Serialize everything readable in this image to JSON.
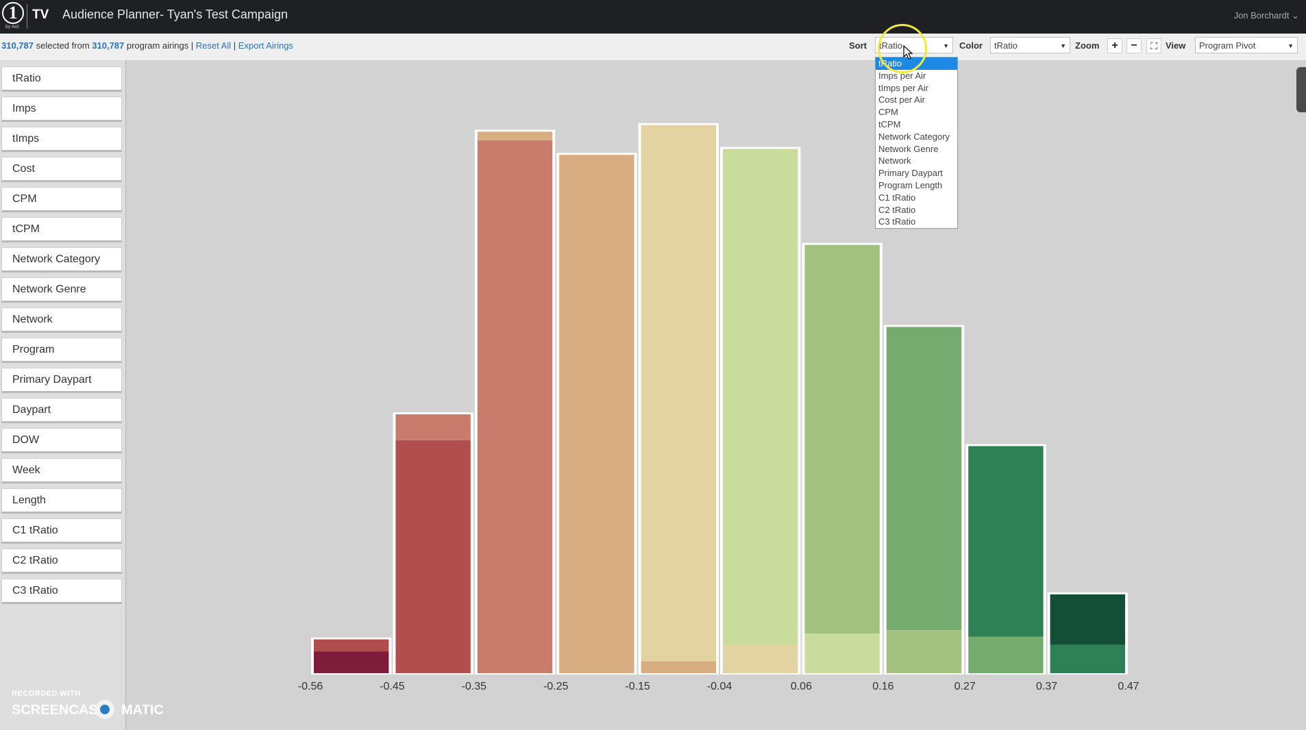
{
  "header": {
    "logo_number": "1",
    "logo_sub": "by Aol.",
    "logo_tv": "TV",
    "title": "Audience Planner- Tyan's Test Campaign",
    "user": "Jon Borchardt ⌄"
  },
  "toolbar": {
    "selected_count": "310,787",
    "selected_text": " selected from ",
    "total_count": "310,787",
    "airings_text": " program airings | ",
    "reset_label": "Reset All",
    "sep": " | ",
    "export_label": "Export Airings",
    "sort_label": "Sort",
    "sort_value": "tRatio",
    "color_label": "Color",
    "color_value": "tRatio",
    "zoom_label": "Zoom",
    "zoom_in": "+",
    "zoom_out": "−",
    "fullscreen": "⛶",
    "view_label": "View",
    "view_value": "Program Pivot"
  },
  "sort_options": [
    "tRatio",
    "Imps per Air",
    "tImps per Air",
    "Cost per Air",
    "CPM",
    "tCPM",
    "Network Category",
    "Network Genre",
    "Network",
    "Primary Daypart",
    "Program Length",
    "C1 tRatio",
    "C2 tRatio",
    "C3 tRatio"
  ],
  "sort_selected_index": 0,
  "sidebar": {
    "items": [
      "tRatio",
      "Imps",
      "tImps",
      "Cost",
      "CPM",
      "tCPM",
      "Network Category",
      "Network Genre",
      "Network",
      "Program",
      "Primary Daypart",
      "Daypart",
      "DOW",
      "Week",
      "Length",
      "C1 tRatio",
      "C2 tRatio",
      "C3 tRatio"
    ]
  },
  "chart_data": {
    "type": "bar",
    "x_ticks": [
      "-0.56",
      "-0.45",
      "-0.35",
      "-0.25",
      "-0.15",
      "-0.04",
      "0.06",
      "0.16",
      "0.27",
      "0.37",
      "0.47"
    ],
    "values": [
      56,
      396,
      823,
      788,
      833,
      797,
      652,
      528,
      348,
      124
    ],
    "segments": [
      [
        {
          "value": 33,
          "color": "#7d1d3a"
        },
        {
          "value": 18,
          "color": "#b14d4d"
        }
      ],
      [
        {
          "value": 352,
          "color": "#b24e4d"
        },
        {
          "value": 39,
          "color": "#c97c6b"
        }
      ],
      [
        {
          "value": 805,
          "color": "#c97c6b"
        },
        {
          "value": 13,
          "color": "#d8ad82"
        }
      ],
      [
        {
          "value": 783,
          "color": "#d8ad82"
        }
      ],
      [
        {
          "value": 18,
          "color": "#d8ad82"
        },
        {
          "value": 810,
          "color": "#e3d3a2"
        }
      ],
      [
        {
          "value": 43,
          "color": "#e3d3a2"
        },
        {
          "value": 749,
          "color": "#cadb9e"
        }
      ],
      [
        {
          "value": 60,
          "color": "#cadb9e"
        },
        {
          "value": 587,
          "color": "#a2c17f"
        }
      ],
      [
        {
          "value": 65,
          "color": "#a2c17f"
        },
        {
          "value": 458,
          "color": "#76ab6f"
        }
      ],
      [
        {
          "value": 55,
          "color": "#76ab6f"
        },
        {
          "value": 288,
          "color": "#2e8055"
        }
      ],
      [
        {
          "value": 43,
          "color": "#2e8055"
        },
        {
          "value": 76,
          "color": "#134e36"
        }
      ]
    ],
    "y_max": 900,
    "grid": false,
    "legend": "none"
  },
  "watermark": {
    "line1": "RECORDED WITH",
    "line2a": "SCREENCAST",
    "line2b": "MATIC"
  }
}
